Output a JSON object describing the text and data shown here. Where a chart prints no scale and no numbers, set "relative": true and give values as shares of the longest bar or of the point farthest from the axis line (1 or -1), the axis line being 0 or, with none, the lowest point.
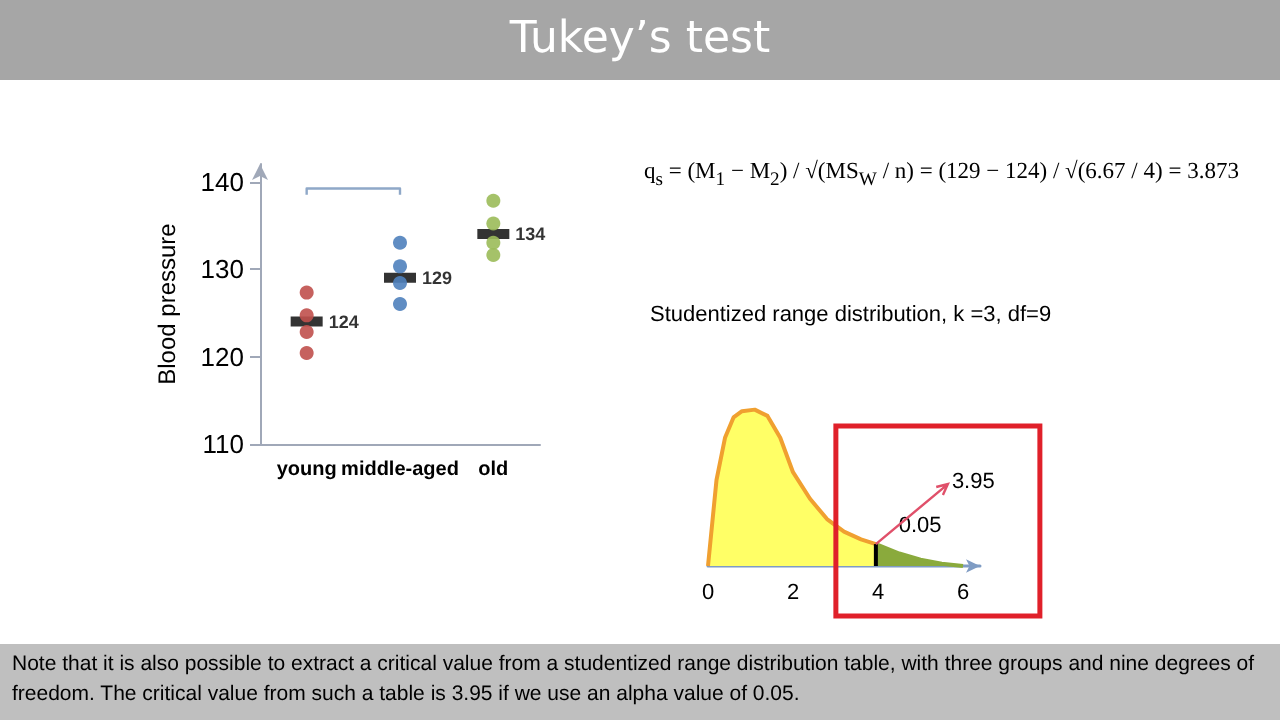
{
  "chart_data": [
    {
      "type": "scatter",
      "title": "Tukey’s test",
      "ylabel": "Blood pressure",
      "categories": [
        "young",
        "middle-aged",
        "old"
      ],
      "ylim": [
        110,
        142
      ],
      "yticks": [
        110,
        120,
        130,
        140
      ],
      "grid": false,
      "series": [
        {
          "color": "#c0504d",
          "marker": "circle",
          "x": [
            "young",
            "young",
            "young",
            "young"
          ],
          "values": [
            127.3,
            124.7,
            122.8,
            120.4
          ]
        },
        {
          "color": "#4f81bd",
          "marker": "circle",
          "x": [
            "middle-aged",
            "middle-aged",
            "middle-aged",
            "middle-aged"
          ],
          "values": [
            133,
            130.3,
            128.4,
            126
          ]
        },
        {
          "color": "#9bbb59",
          "marker": "circle",
          "x": [
            "old",
            "old",
            "old",
            "old"
          ],
          "values": [
            137.8,
            135.2,
            133,
            131.6
          ]
        },
        {
          "color": "#000000",
          "x": [
            "young",
            "middle-aged",
            "old"
          ],
          "values": [
            124,
            129,
            134
          ],
          "value_labels": [
            "124",
            "129",
            "134"
          ]
        },
        {
          "type": "line",
          "color": "#8fa8c8",
          "marker": "none",
          "x": [
            "young",
            "young",
            "middle-aged",
            "middle-aged"
          ],
          "values": [
            138.5,
            139.2,
            139.2,
            138.5
          ]
        }
      ],
      "annotations": [
        "Note that it is also possible to extract a critical value from a studentized range distribution table, with three groups and nine degrees of freedom. The critical value from such a table is 3.95 if we use an alpha value of 0.05."
      ]
    },
    {
      "type": "area",
      "title": "Studentized range distribution, k =3, df=9",
      "relative": true,
      "xlim": [
        0,
        6.4
      ],
      "xticks": [
        0,
        2,
        4,
        6
      ],
      "tick_labels": "x",
      "grid": false,
      "series": [
        {
          "color": "#ffff66",
          "x": [
            0,
            0.2,
            0.4,
            0.6,
            0.8,
            1.1,
            1.4,
            1.7,
            2.0,
            2.4,
            2.8,
            3.2,
            3.6,
            3.95
          ],
          "values": [
            0,
            0.55,
            0.82,
            0.95,
            0.99,
            1.0,
            0.96,
            0.82,
            0.6,
            0.43,
            0.3,
            0.22,
            0.17,
            0.14
          ]
        },
        {
          "color": "#8aaa3c",
          "x": [
            3.95,
            4.5,
            5.0,
            5.5,
            6.0
          ],
          "values": [
            0.14,
            0.08,
            0.04,
            0.015,
            0
          ]
        }
      ],
      "annotations": [
        "q$_{s}$ = (M$_{1}$ − M$_{2}$) / √(MS$_{W}$ / n) = (129 − 124) / √(6.67 / 4) = 3.873",
        "0.05",
        {
          "text": "3.95",
          "x": 3.95,
          "y": 0.14
        }
      ]
    }
  ]
}
